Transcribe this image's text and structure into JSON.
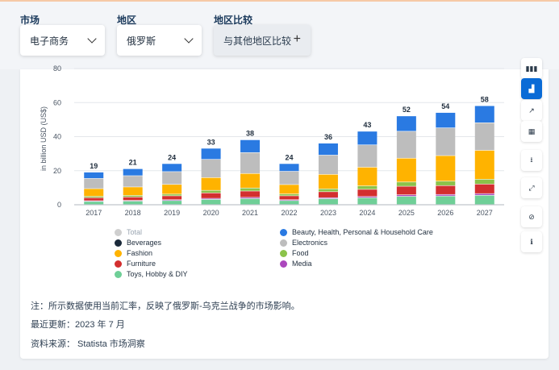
{
  "filters": [
    {
      "label": "市场",
      "value": "电子商务",
      "icon": "chevron-down-icon"
    },
    {
      "label": "地区",
      "value": "俄罗斯",
      "icon": "chevron-down-icon"
    },
    {
      "label": "地区比较",
      "value": "与其他地区比较",
      "icon": "plus-icon"
    }
  ],
  "colors": {
    "beauty": "#2a7ae2",
    "electronics": "#bdbdbd",
    "fashion": "#ffb300",
    "food": "#8bc34a",
    "furniture": "#d32f2f",
    "media": "#ab47bc",
    "toys": "#6fcf97",
    "beverages": "#1b2a3a",
    "total": "#cfcfcf"
  },
  "chart_data": {
    "type": "bar",
    "stacked": true,
    "categories": [
      "2017",
      "2018",
      "2019",
      "2020",
      "2021",
      "2022",
      "2023",
      "2024",
      "2025",
      "2026",
      "2027"
    ],
    "totals": [
      19,
      21,
      24,
      33,
      38,
      24,
      36,
      43,
      52,
      54,
      58
    ],
    "ylabel": "in billion USD (US$)",
    "ylim": [
      0,
      80
    ],
    "yticks": [
      0,
      20,
      40,
      60,
      80
    ],
    "grid": true,
    "legend_position": "bottom",
    "series": [
      {
        "name": "Toys, Hobby & DIY",
        "key": "toys",
        "values": [
          1.8,
          2.0,
          2.3,
          3.0,
          3.5,
          2.3,
          3.4,
          4.0,
          4.8,
          5.0,
          5.4
        ]
      },
      {
        "name": "Media",
        "key": "media",
        "values": [
          0.4,
          0.4,
          0.5,
          0.6,
          0.7,
          0.5,
          0.6,
          0.7,
          0.9,
          0.9,
          1.0
        ]
      },
      {
        "name": "Furniture",
        "key": "furniture",
        "values": [
          1.8,
          2.0,
          2.3,
          3.2,
          3.7,
          2.3,
          3.5,
          4.2,
          5.0,
          5.2,
          5.6
        ]
      },
      {
        "name": "Food",
        "key": "food",
        "values": [
          0.8,
          0.9,
          1.0,
          1.5,
          1.8,
          1.1,
          1.7,
          2.0,
          2.5,
          2.6,
          2.8
        ]
      },
      {
        "name": "Fashion",
        "key": "fashion",
        "values": [
          4.5,
          5.0,
          5.7,
          7.5,
          8.5,
          5.5,
          8.5,
          11.0,
          14.0,
          15.0,
          17.0
        ]
      },
      {
        "name": "Electronics",
        "key": "electronics",
        "values": [
          6.0,
          6.6,
          7.5,
          10.7,
          12.3,
          7.8,
          11.3,
          13.1,
          15.8,
          16.3,
          16.2
        ]
      },
      {
        "name": "Beauty, Health, Personal & Household Care",
        "key": "beauty",
        "values": [
          3.7,
          4.1,
          4.7,
          6.5,
          7.5,
          4.5,
          7.0,
          8.0,
          9.0,
          9.0,
          10.0
        ]
      },
      {
        "name": "Beverages",
        "key": "beverages",
        "values": [
          0,
          0,
          0,
          0,
          0,
          0,
          0,
          0,
          0,
          0,
          0
        ]
      }
    ],
    "legend": [
      {
        "name": "Total",
        "key": "total",
        "inactive": true
      },
      {
        "name": "Beauty, Health, Personal & Household Care",
        "key": "beauty"
      },
      {
        "name": "Beverages",
        "key": "beverages"
      },
      {
        "name": "Electronics",
        "key": "electronics"
      },
      {
        "name": "Fashion",
        "key": "fashion"
      },
      {
        "name": "Food",
        "key": "food"
      },
      {
        "name": "Furniture",
        "key": "furniture"
      },
      {
        "name": "Media",
        "key": "media"
      },
      {
        "name": "Toys, Hobby & DIY",
        "key": "toys"
      }
    ]
  },
  "notes": {
    "note": "注：所示数据使用当前汇率，反映了俄罗斯-乌克兰战争的市场影响。",
    "updated": "最近更新：2023 年 7 月",
    "source": "资料来源： Statista 市场洞察"
  },
  "sidebar": [
    {
      "name": "bar-chart-icon",
      "glyph": "▮▮▮",
      "active": false
    },
    {
      "name": "stacked-bar-icon",
      "glyph": "▟",
      "active": true
    },
    {
      "name": "trend-line-icon",
      "glyph": "↗",
      "active": false
    },
    {
      "name": "table-icon",
      "glyph": "▦",
      "active": false
    },
    {
      "name": "download-icon",
      "glyph": "⭳",
      "active": false
    },
    {
      "name": "expand-icon",
      "glyph": "⤢",
      "active": false
    },
    {
      "name": "hide-icon",
      "glyph": "⊘",
      "active": false
    },
    {
      "name": "info-icon",
      "glyph": "ℹ",
      "active": false
    }
  ]
}
